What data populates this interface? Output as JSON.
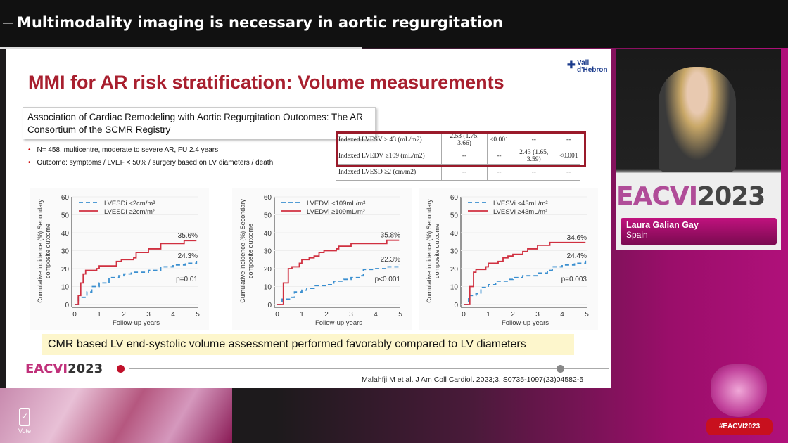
{
  "header": {
    "session_title": "Multimodality imaging is necessary in aortic regurgitation"
  },
  "slide": {
    "title": "MMI for AR risk stratification: Volume measurements",
    "logo": {
      "line1": "Vall",
      "line2": "d'Hebron",
      "icon": "cross-icon"
    },
    "study_title": "Association of Cardiac Remodeling with Aortic Regurgitation Outcomes: The AR Consortium of the SCMR Registry",
    "bullets": [
      "N= 458, multicentre,  moderate to severe AR, FU 2.4 years",
      "Outcome: symptoms / LVEF < 50% / surgery based on LV diameters / death"
    ],
    "table": [
      [
        "Indexed LVESV ≥ 43 (mL/m2)",
        "2.53 (1.75, 3.66)",
        "<0.001",
        "--",
        "--"
      ],
      [
        "Indexed LVEDV ≥109 (mL/m2)",
        "--",
        "--",
        "2.43 (1.65, 3.59)",
        "<0.001"
      ],
      [
        "Indexed LVESD ≥2 (cm/m2)",
        "--",
        "--",
        "--",
        "--"
      ]
    ],
    "conclusion": "CMR based LV end-systolic volume assessment performed favorably compared to LV diameters",
    "footer_brand": {
      "a": "EACVI",
      "b": "2023"
    },
    "citation": "Malahfji M et al. J Am Coll Cardiol. 2023;3, S0735-1097(23)04582-5"
  },
  "chart_data": [
    {
      "type": "line",
      "xlabel": "Follow-up years",
      "ylabel": "Cumulative incidence (%) Secondary composite outcome",
      "xlim": [
        0,
        5
      ],
      "ylim": [
        0,
        60
      ],
      "xticks": [
        0,
        1,
        2,
        3,
        4,
        5
      ],
      "yticks": [
        0,
        10,
        20,
        30,
        40,
        50,
        60
      ],
      "legend": "top-left",
      "pvalue": "p=0.01",
      "series": [
        {
          "name": "LVESDi <2cm/m²",
          "style": "dashed",
          "color": "#3a8fd0",
          "end_label": "24.3%",
          "points": [
            [
              0,
              0
            ],
            [
              0.1,
              0
            ],
            [
              0.15,
              4
            ],
            [
              0.5,
              7
            ],
            [
              0.7,
              10
            ],
            [
              1,
              12
            ],
            [
              1.4,
              15
            ],
            [
              1.8,
              16
            ],
            [
              2,
              17
            ],
            [
              2.3,
              18
            ],
            [
              2.8,
              18
            ],
            [
              3,
              19
            ],
            [
              3.5,
              21
            ],
            [
              4,
              22
            ],
            [
              4.5,
              23
            ],
            [
              4.95,
              24.3
            ]
          ]
        },
        {
          "name": "LVESDi ≥2cm/m²",
          "style": "solid",
          "color": "#d03040",
          "end_label": "35.6%",
          "points": [
            [
              0,
              0
            ],
            [
              0.1,
              0
            ],
            [
              0.15,
              5
            ],
            [
              0.25,
              12
            ],
            [
              0.35,
              17
            ],
            [
              0.45,
              19
            ],
            [
              0.8,
              19
            ],
            [
              0.9,
              20
            ],
            [
              1,
              21.5
            ],
            [
              1.6,
              21.5
            ],
            [
              1.7,
              24
            ],
            [
              1.9,
              25
            ],
            [
              2.4,
              26
            ],
            [
              2.5,
              29
            ],
            [
              3,
              31
            ],
            [
              3.5,
              34
            ],
            [
              4.4,
              34
            ],
            [
              4.45,
              35.6
            ],
            [
              4.95,
              35.6
            ]
          ]
        }
      ]
    },
    {
      "type": "line",
      "xlabel": "Follow-up years",
      "ylabel": "Cumulative incidence (%) Secondary composite outcome",
      "xlim": [
        0,
        5
      ],
      "ylim": [
        0,
        60
      ],
      "xticks": [
        0,
        1,
        2,
        3,
        4,
        5
      ],
      "yticks": [
        0,
        10,
        20,
        30,
        40,
        50,
        60
      ],
      "legend": "top-left",
      "pvalue": "p<0.001",
      "series": [
        {
          "name": "LVEDVi <109mL/m²",
          "style": "dashed",
          "color": "#3a8fd0",
          "end_label": "22.3%",
          "points": [
            [
              0,
              0
            ],
            [
              0.1,
              0
            ],
            [
              0.2,
              3
            ],
            [
              0.5,
              4
            ],
            [
              0.7,
              7
            ],
            [
              1,
              8
            ],
            [
              1.2,
              9
            ],
            [
              1.5,
              10.5
            ],
            [
              2,
              11
            ],
            [
              2.3,
              13
            ],
            [
              2.7,
              14
            ],
            [
              3,
              15
            ],
            [
              3.4,
              16
            ],
            [
              3.5,
              19.5
            ],
            [
              4,
              20
            ],
            [
              4.5,
              21
            ],
            [
              4.95,
              22.3
            ]
          ]
        },
        {
          "name": "LVEDVi ≥109mL/m²",
          "style": "solid",
          "color": "#d03040",
          "end_label": "35.8%",
          "points": [
            [
              0,
              0
            ],
            [
              0.1,
              0
            ],
            [
              0.25,
              12
            ],
            [
              0.45,
              20
            ],
            [
              0.6,
              21
            ],
            [
              0.9,
              23
            ],
            [
              1,
              25
            ],
            [
              1.3,
              26
            ],
            [
              1.5,
              27
            ],
            [
              1.7,
              29
            ],
            [
              1.9,
              30
            ],
            [
              2.4,
              31
            ],
            [
              2.5,
              32.5
            ],
            [
              3,
              34
            ],
            [
              4.4,
              34
            ],
            [
              4.45,
              35.8
            ],
            [
              4.95,
              35.8
            ]
          ]
        }
      ]
    },
    {
      "type": "line",
      "xlabel": "Follow-up years",
      "ylabel": "Cumulative incidence (%) Secondary composite outcome",
      "xlim": [
        0,
        5
      ],
      "ylim": [
        0,
        60
      ],
      "xticks": [
        0,
        1,
        2,
        3,
        4,
        5
      ],
      "yticks": [
        0,
        10,
        20,
        30,
        40,
        50,
        60
      ],
      "legend": "top-left",
      "pvalue": "p=0.003",
      "series": [
        {
          "name": "LVESVi <43mL/m²",
          "style": "dashed",
          "color": "#3a8fd0",
          "end_label": "24.4%",
          "points": [
            [
              0,
              0
            ],
            [
              0.1,
              0
            ],
            [
              0.2,
              5
            ],
            [
              0.5,
              6
            ],
            [
              0.7,
              9.5
            ],
            [
              1,
              11
            ],
            [
              1.3,
              13
            ],
            [
              1.8,
              14
            ],
            [
              2,
              15
            ],
            [
              2.4,
              16
            ],
            [
              3,
              17.5
            ],
            [
              3.4,
              19
            ],
            [
              3.6,
              21
            ],
            [
              4,
              22
            ],
            [
              4.5,
              23
            ],
            [
              4.95,
              24.4
            ]
          ]
        },
        {
          "name": "LVESVi ≥43mL/m²",
          "style": "solid",
          "color": "#d03040",
          "end_label": "34.6%",
          "points": [
            [
              0,
              0
            ],
            [
              0.1,
              0
            ],
            [
              0.25,
              10
            ],
            [
              0.4,
              18
            ],
            [
              0.5,
              19.5
            ],
            [
              0.8,
              19.5
            ],
            [
              0.9,
              21
            ],
            [
              1,
              23
            ],
            [
              1.4,
              24
            ],
            [
              1.6,
              26
            ],
            [
              1.8,
              27
            ],
            [
              2,
              28
            ],
            [
              2.4,
              29.5
            ],
            [
              2.6,
              31
            ],
            [
              3,
              33
            ],
            [
              3.5,
              34.6
            ],
            [
              4.95,
              34.6
            ]
          ]
        }
      ]
    }
  ],
  "speaker": {
    "name": "Laura Galian Gay",
    "country": "Spain",
    "banner_a": "EACVI",
    "banner_b": "2023"
  },
  "overlay": {
    "vote_label": "Vote",
    "vote_icon": "phone-check-icon",
    "hashtag": "#EACVI2023"
  }
}
